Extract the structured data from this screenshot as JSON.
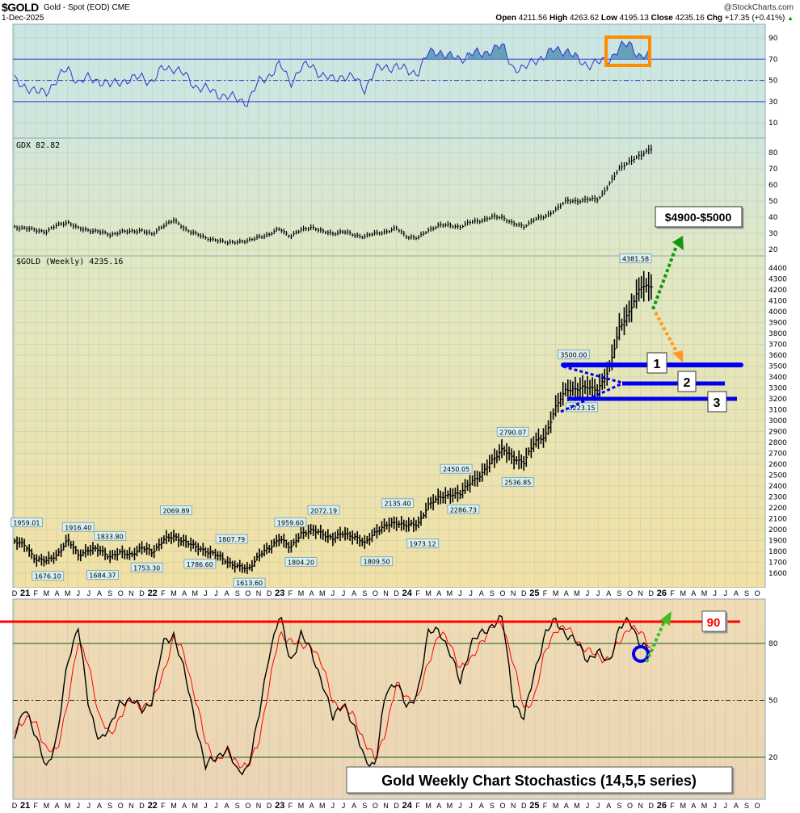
{
  "header": {
    "symbol": "$GOLD",
    "description": "Gold - Spot (EOD) CME",
    "date": "1-Dec-2025",
    "brand": "@StockCharts.com",
    "open_label": "Open",
    "open": "4211.56",
    "high_label": "High",
    "high": "4263.62",
    "low_label": "Low",
    "low": "4195.13",
    "close_label": "Close",
    "close": "4235.16",
    "chg_label": "Chg",
    "chg": "+17.35 (+0.41%)",
    "chg_icon": "triangle-up-icon"
  },
  "colors": {
    "rsi_line": "#3333cc",
    "rsi_fill": "#4a8fb0",
    "price": "#000000",
    "stoch_k": "#000000",
    "stoch_d": "#ff0000",
    "support": "#0000ee",
    "target_arrow": "#119911",
    "pullback_arrow": "#ff9922",
    "highlight": "#ff8c00",
    "level_90": "#ff0000"
  },
  "chart_data": [
    {
      "type": "line",
      "panel": "rsi",
      "axis_ticks": [
        "90",
        "70",
        "50",
        "30",
        "10"
      ],
      "ylim": [
        0,
        100
      ],
      "reference_lines": [
        70,
        50,
        30
      ],
      "dates": "monthly Dec-2020 to Dec-2025",
      "values": [
        50,
        45,
        38,
        40,
        50,
        62,
        48,
        52,
        50,
        45,
        50,
        50,
        54,
        48,
        62,
        62,
        55,
        45,
        42,
        38,
        35,
        32,
        30,
        48,
        55,
        65,
        48,
        62,
        64,
        55,
        50,
        55,
        52,
        42,
        60,
        62,
        64,
        58,
        58,
        75,
        78,
        72,
        70,
        76,
        74,
        80,
        82,
        62,
        60,
        70,
        72,
        80,
        78,
        70,
        65,
        66,
        70,
        80,
        85,
        72,
        73
      ]
    },
    {
      "type": "line",
      "panel": "gdx",
      "title": "GDX 82.82",
      "axis_ticks": [
        "80",
        "70",
        "60",
        "50",
        "40",
        "30",
        "20"
      ],
      "ylim": [
        20,
        85
      ],
      "values": [
        34,
        33,
        32,
        31,
        35,
        37,
        33,
        32,
        31,
        29,
        31,
        31,
        32,
        29,
        35,
        38,
        33,
        30,
        27,
        26,
        24,
        25,
        25,
        28,
        29,
        33,
        28,
        32,
        34,
        31,
        30,
        31,
        29,
        28,
        30,
        31,
        33,
        28,
        27,
        32,
        35,
        35,
        34,
        37,
        38,
        40,
        40,
        36,
        34,
        39,
        40,
        45,
        50,
        50,
        51,
        51,
        60,
        70,
        75,
        78,
        82.82
      ]
    },
    {
      "type": "bar",
      "panel": "gold",
      "title": "$GOLD (Weekly) 4235.16",
      "axis_ticks": [
        "4400",
        "4300",
        "4200",
        "4100",
        "4000",
        "3900",
        "3800",
        "3700",
        "3600",
        "3500",
        "3400",
        "3300",
        "3200",
        "3100",
        "3000",
        "2900",
        "2800",
        "2700",
        "2600",
        "2500",
        "2400",
        "2300",
        "2200",
        "2100",
        "2000",
        "1900",
        "1800",
        "1700",
        "1600"
      ],
      "ylim": [
        1550,
        4500
      ],
      "start": "2020-12",
      "values": [
        1895,
        1850,
        1730,
        1710,
        1770,
        1905,
        1770,
        1815,
        1815,
        1755,
        1785,
        1775,
        1830,
        1795,
        1905,
        1935,
        1895,
        1840,
        1808,
        1765,
        1710,
        1660,
        1635,
        1765,
        1825,
        1930,
        1825,
        1970,
        1990,
        1965,
        1920,
        1965,
        1940,
        1870,
        1985,
        2035,
        2065,
        2040,
        2045,
        2230,
        2290,
        2325,
        2325,
        2445,
        2500,
        2635,
        2745,
        2645,
        2625,
        2800,
        2860,
        3120,
        3290,
        3290,
        3305,
        3290,
        3450,
        3860,
        4000,
        4240,
        4235.16
      ],
      "price_labels": [
        {
          "text": "1959.01",
          "date": "2021-01-05",
          "pos": "high",
          "value": 1959.01
        },
        {
          "text": "1676.10",
          "date": "2021-03-05",
          "pos": "low",
          "value": 1676.1
        },
        {
          "text": "1916.40",
          "date": "2021-06-01",
          "pos": "high",
          "value": 1916.4
        },
        {
          "text": "1684.37",
          "date": "2021-08-10",
          "pos": "low",
          "value": 1684.37
        },
        {
          "text": "1833.80",
          "date": "2021-09-01",
          "pos": "high",
          "value": 1833.8
        },
        {
          "text": "1753.30",
          "date": "2021-12-15",
          "pos": "low",
          "value": 1753.3
        },
        {
          "text": "2069.89",
          "date": "2022-03-08",
          "pos": "high",
          "value": 2069.89
        },
        {
          "text": "1786.60",
          "date": "2022-05-15",
          "pos": "low",
          "value": 1786.6
        },
        {
          "text": "1807.79",
          "date": "2022-08-15",
          "pos": "high",
          "value": 1807.79
        },
        {
          "text": "1613.60",
          "date": "2022-10-05",
          "pos": "low",
          "value": 1613.6
        },
        {
          "text": "1959.60",
          "date": "2023-02-01",
          "pos": "high",
          "value": 1959.6
        },
        {
          "text": "1804.20",
          "date": "2023-03-01",
          "pos": "low",
          "value": 1804.2
        },
        {
          "text": "2072.19",
          "date": "2023-05-05",
          "pos": "high",
          "value": 2072.19
        },
        {
          "text": "1809.50",
          "date": "2023-10-05",
          "pos": "low",
          "value": 1809.5
        },
        {
          "text": "2135.40",
          "date": "2023-12-04",
          "pos": "high",
          "value": 2135.4
        },
        {
          "text": "1973.12",
          "date": "2024-02-15",
          "pos": "low",
          "value": 1973.12
        },
        {
          "text": "2450.05",
          "date": "2024-05-20",
          "pos": "high",
          "value": 2450.05
        },
        {
          "text": "2286.73",
          "date": "2024-06-10",
          "pos": "low",
          "value": 2286.73
        },
        {
          "text": "2790.07",
          "date": "2024-10-30",
          "pos": "high",
          "value": 2790.07
        },
        {
          "text": "2536.85",
          "date": "2024-11-14",
          "pos": "low",
          "value": 2536.85
        },
        {
          "text": "3500.00",
          "date": "2025-04-22",
          "pos": "high",
          "value": 3500.0
        },
        {
          "text": "3223.15",
          "date": "2025-05-15",
          "pos": "low",
          "value": 3223.15
        },
        {
          "text": "4381.58",
          "date": "2025-10-17",
          "pos": "high",
          "value": 4381.58
        }
      ],
      "annotations": {
        "target_label": "$4900-$5000",
        "support_levels": [
          {
            "label": "1",
            "value": 3520
          },
          {
            "label": "2",
            "value": 3340
          },
          {
            "label": "3",
            "value": 3200
          }
        ]
      }
    },
    {
      "type": "line",
      "panel": "stochastics",
      "axis_ticks": [
        "80",
        "50",
        "20"
      ],
      "ylim": [
        5,
        100
      ],
      "reference_lines": [
        80,
        50,
        20
      ],
      "level_line": {
        "label": "90",
        "value": 90
      },
      "caption": "Gold Weekly Chart Stochastics (14,5,5 series)",
      "series": [
        {
          "values": [
            30,
            48,
            30,
            15,
            30,
            70,
            90,
            45,
            30,
            35,
            50,
            50,
            45,
            50,
            80,
            85,
            65,
            40,
            15,
            20,
            25,
            12,
            15,
            40,
            75,
            95,
            70,
            85,
            75,
            60,
            40,
            50,
            35,
            20,
            15,
            55,
            60,
            45,
            55,
            85,
            88,
            75,
            60,
            80,
            85,
            90,
            93,
            50,
            40,
            65,
            85,
            92,
            85,
            80,
            72,
            75,
            70,
            88,
            92,
            80,
            75
          ]
        },
        {
          "values": [
            35,
            40,
            38,
            25,
            22,
            50,
            80,
            70,
            40,
            32,
            42,
            50,
            47,
            48,
            65,
            82,
            75,
            52,
            28,
            18,
            22,
            18,
            14,
            28,
            58,
            85,
            82,
            78,
            80,
            68,
            50,
            45,
            42,
            28,
            18,
            35,
            58,
            52,
            50,
            70,
            86,
            80,
            68,
            70,
            82,
            88,
            91,
            70,
            45,
            52,
            75,
            88,
            88,
            82,
            76,
            73,
            72,
            80,
            90,
            85,
            78
          ]
        }
      ]
    }
  ],
  "date_axis": [
    "D",
    "21",
    "F",
    "M",
    "A",
    "M",
    "J",
    "J",
    "A",
    "S",
    "O",
    "N",
    "D",
    "22",
    "F",
    "M",
    "A",
    "M",
    "J",
    "J",
    "A",
    "S",
    "O",
    "N",
    "D",
    "23",
    "F",
    "M",
    "A",
    "M",
    "J",
    "J",
    "A",
    "S",
    "O",
    "N",
    "D",
    "24",
    "F",
    "M",
    "A",
    "M",
    "J",
    "J",
    "A",
    "S",
    "O",
    "N",
    "D",
    "25",
    "F",
    "M",
    "A",
    "M",
    "J",
    "J",
    "A",
    "S",
    "O",
    "N",
    "D",
    "26",
    "F",
    "M",
    "A",
    "M",
    "J",
    "J",
    "A",
    "S",
    "O",
    "N"
  ]
}
